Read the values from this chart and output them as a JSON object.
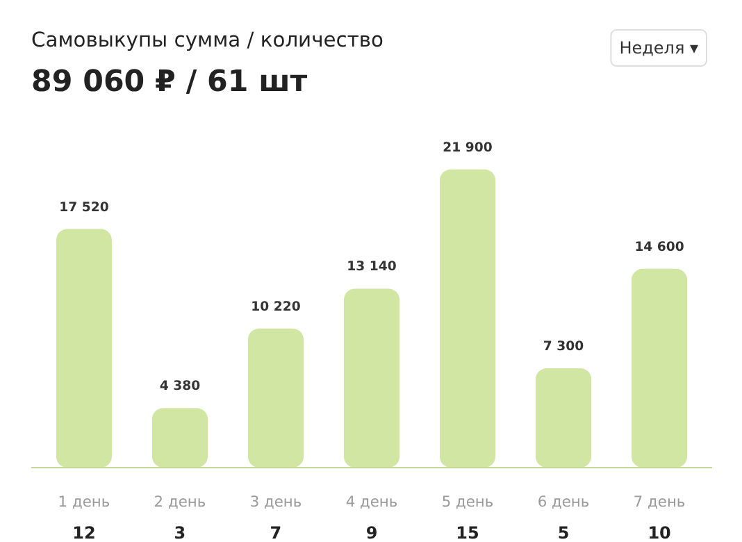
{
  "chart_data": {
    "type": "bar",
    "title": "Самовыкупы сумма / количество",
    "subtitle": "89 060 ₽ / 61 шт",
    "categories": [
      "1 день",
      "2 день",
      "3 день",
      "4 день",
      "5 день",
      "6 день",
      "7 день"
    ],
    "values": [
      17520,
      4380,
      10220,
      13140,
      21900,
      7300,
      14600
    ],
    "value_labels": [
      "17 520",
      "4 380",
      "10 220",
      "13 140",
      "21 900",
      "7 300",
      "14 600"
    ],
    "color": "#d0e6a2",
    "annotations": [
      "12",
      "3",
      "7",
      "9",
      "15",
      "5",
      "10",
      "Неделя ▾"
    ],
    "grid": false
  }
}
